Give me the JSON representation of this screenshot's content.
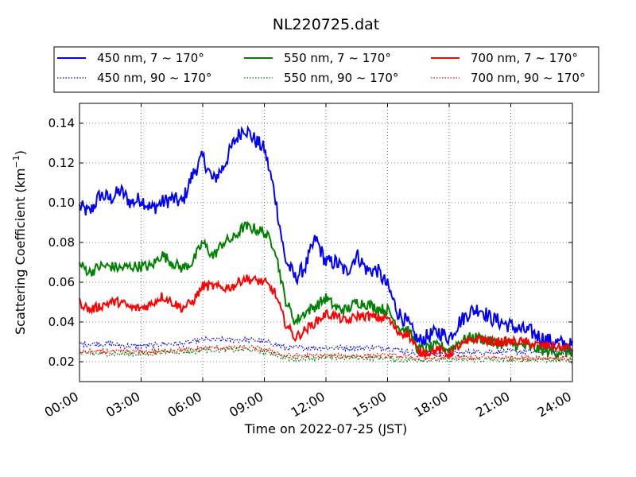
{
  "chart_data": {
    "type": "line",
    "title": "NL220725.dat",
    "xlabel": "Time on 2022-07-25 (JST)",
    "ylabel_main": "Scattering Coefficient (km",
    "ylabel_exp": "−1",
    "ylabel_close": ")",
    "xlim": [
      0,
      24
    ],
    "ylim": [
      0.01,
      0.15
    ],
    "xticks": [
      0,
      3,
      6,
      9,
      12,
      15,
      18,
      21,
      24
    ],
    "xtick_labels": [
      "00:00",
      "03:00",
      "06:00",
      "09:00",
      "12:00",
      "15:00",
      "18:00",
      "21:00",
      "24:00"
    ],
    "yticks": [
      0.02,
      0.04,
      0.06,
      0.08,
      0.1,
      0.12,
      0.14
    ],
    "ytick_labels": [
      "0.02",
      "0.04",
      "0.06",
      "0.08",
      "0.10",
      "0.12",
      "0.14"
    ],
    "grid": true,
    "legend_position": "top",
    "x": [
      0,
      0.5,
      1,
      1.5,
      2,
      2.5,
      3,
      3.5,
      4,
      4.5,
      5,
      5.5,
      6,
      6.5,
      7,
      7.5,
      8,
      8.5,
      9,
      9.5,
      10,
      10.5,
      11,
      11.5,
      12,
      12.5,
      13,
      13.5,
      14,
      14.5,
      15,
      15.5,
      16,
      16.5,
      17,
      17.5,
      18,
      18.5,
      19,
      19.5,
      20,
      20.5,
      21,
      21.5,
      22,
      22.5,
      23,
      23.5,
      24
    ],
    "series": [
      {
        "name": "450 nm, 7 ~ 170°",
        "color": "#0000ff",
        "style": "solid",
        "noise": 0.004,
        "values": [
          0.098,
          0.095,
          0.104,
          0.102,
          0.106,
          0.1,
          0.102,
          0.097,
          0.1,
          0.102,
          0.1,
          0.114,
          0.123,
          0.111,
          0.118,
          0.13,
          0.138,
          0.132,
          0.127,
          0.105,
          0.072,
          0.062,
          0.068,
          0.082,
          0.07,
          0.07,
          0.065,
          0.074,
          0.066,
          0.066,
          0.058,
          0.045,
          0.039,
          0.03,
          0.033,
          0.035,
          0.032,
          0.04,
          0.045,
          0.047,
          0.042,
          0.04,
          0.038,
          0.036,
          0.035,
          0.032,
          0.03,
          0.029,
          0.028
        ]
      },
      {
        "name": "450 nm, 90 ~ 170°",
        "color": "#0000ff",
        "style": "dotted",
        "noise": 0.0014,
        "values": [
          0.029,
          0.029,
          0.029,
          0.029,
          0.028,
          0.028,
          0.028,
          0.028,
          0.029,
          0.029,
          0.029,
          0.03,
          0.031,
          0.031,
          0.031,
          0.031,
          0.031,
          0.031,
          0.03,
          0.029,
          0.027,
          0.027,
          0.027,
          0.027,
          0.027,
          0.027,
          0.027,
          0.027,
          0.027,
          0.027,
          0.027,
          0.026,
          0.025,
          0.024,
          0.024,
          0.024,
          0.024,
          0.024,
          0.025,
          0.025,
          0.025,
          0.025,
          0.025,
          0.025,
          0.025,
          0.025,
          0.025,
          0.025,
          0.025
        ]
      },
      {
        "name": "550 nm, 7 ~ 170°",
        "color": "#008000",
        "style": "solid",
        "noise": 0.0028,
        "values": [
          0.069,
          0.065,
          0.068,
          0.068,
          0.067,
          0.068,
          0.068,
          0.068,
          0.074,
          0.07,
          0.067,
          0.07,
          0.08,
          0.073,
          0.08,
          0.082,
          0.088,
          0.087,
          0.085,
          0.078,
          0.052,
          0.04,
          0.045,
          0.048,
          0.052,
          0.047,
          0.046,
          0.05,
          0.049,
          0.047,
          0.046,
          0.038,
          0.036,
          0.026,
          0.027,
          0.028,
          0.026,
          0.03,
          0.032,
          0.032,
          0.03,
          0.029,
          0.029,
          0.028,
          0.027,
          0.026,
          0.025,
          0.025,
          0.025
        ]
      },
      {
        "name": "550 nm, 90 ~ 170°",
        "color": "#008000",
        "style": "dotted",
        "noise": 0.0013,
        "values": [
          0.024,
          0.024,
          0.024,
          0.024,
          0.024,
          0.024,
          0.024,
          0.024,
          0.025,
          0.025,
          0.025,
          0.025,
          0.026,
          0.026,
          0.026,
          0.026,
          0.026,
          0.026,
          0.025,
          0.024,
          0.022,
          0.021,
          0.022,
          0.022,
          0.022,
          0.022,
          0.022,
          0.022,
          0.022,
          0.022,
          0.022,
          0.021,
          0.021,
          0.021,
          0.021,
          0.021,
          0.021,
          0.021,
          0.021,
          0.021,
          0.021,
          0.021,
          0.021,
          0.021,
          0.021,
          0.021,
          0.021,
          0.021,
          0.021
        ]
      },
      {
        "name": "700 nm, 7 ~ 170°",
        "color": "#ff0000",
        "style": "solid",
        "noise": 0.0024,
        "values": [
          0.05,
          0.046,
          0.048,
          0.05,
          0.05,
          0.047,
          0.047,
          0.049,
          0.053,
          0.05,
          0.047,
          0.05,
          0.058,
          0.058,
          0.057,
          0.058,
          0.062,
          0.061,
          0.06,
          0.055,
          0.04,
          0.032,
          0.036,
          0.04,
          0.044,
          0.043,
          0.04,
          0.043,
          0.043,
          0.042,
          0.042,
          0.035,
          0.034,
          0.025,
          0.025,
          0.026,
          0.024,
          0.028,
          0.03,
          0.032,
          0.03,
          0.03,
          0.03,
          0.03,
          0.029,
          0.028,
          0.028,
          0.027,
          0.027
        ]
      },
      {
        "name": "700 nm, 90 ~ 170°",
        "color": "#ff0000",
        "style": "dotted",
        "noise": 0.0013,
        "values": [
          0.025,
          0.025,
          0.025,
          0.025,
          0.025,
          0.025,
          0.025,
          0.025,
          0.025,
          0.026,
          0.026,
          0.026,
          0.027,
          0.027,
          0.027,
          0.027,
          0.027,
          0.027,
          0.026,
          0.025,
          0.023,
          0.023,
          0.023,
          0.023,
          0.023,
          0.023,
          0.023,
          0.023,
          0.023,
          0.023,
          0.023,
          0.023,
          0.022,
          0.022,
          0.022,
          0.022,
          0.022,
          0.022,
          0.022,
          0.022,
          0.022,
          0.022,
          0.022,
          0.022,
          0.022,
          0.022,
          0.022,
          0.022,
          0.022
        ]
      }
    ]
  }
}
